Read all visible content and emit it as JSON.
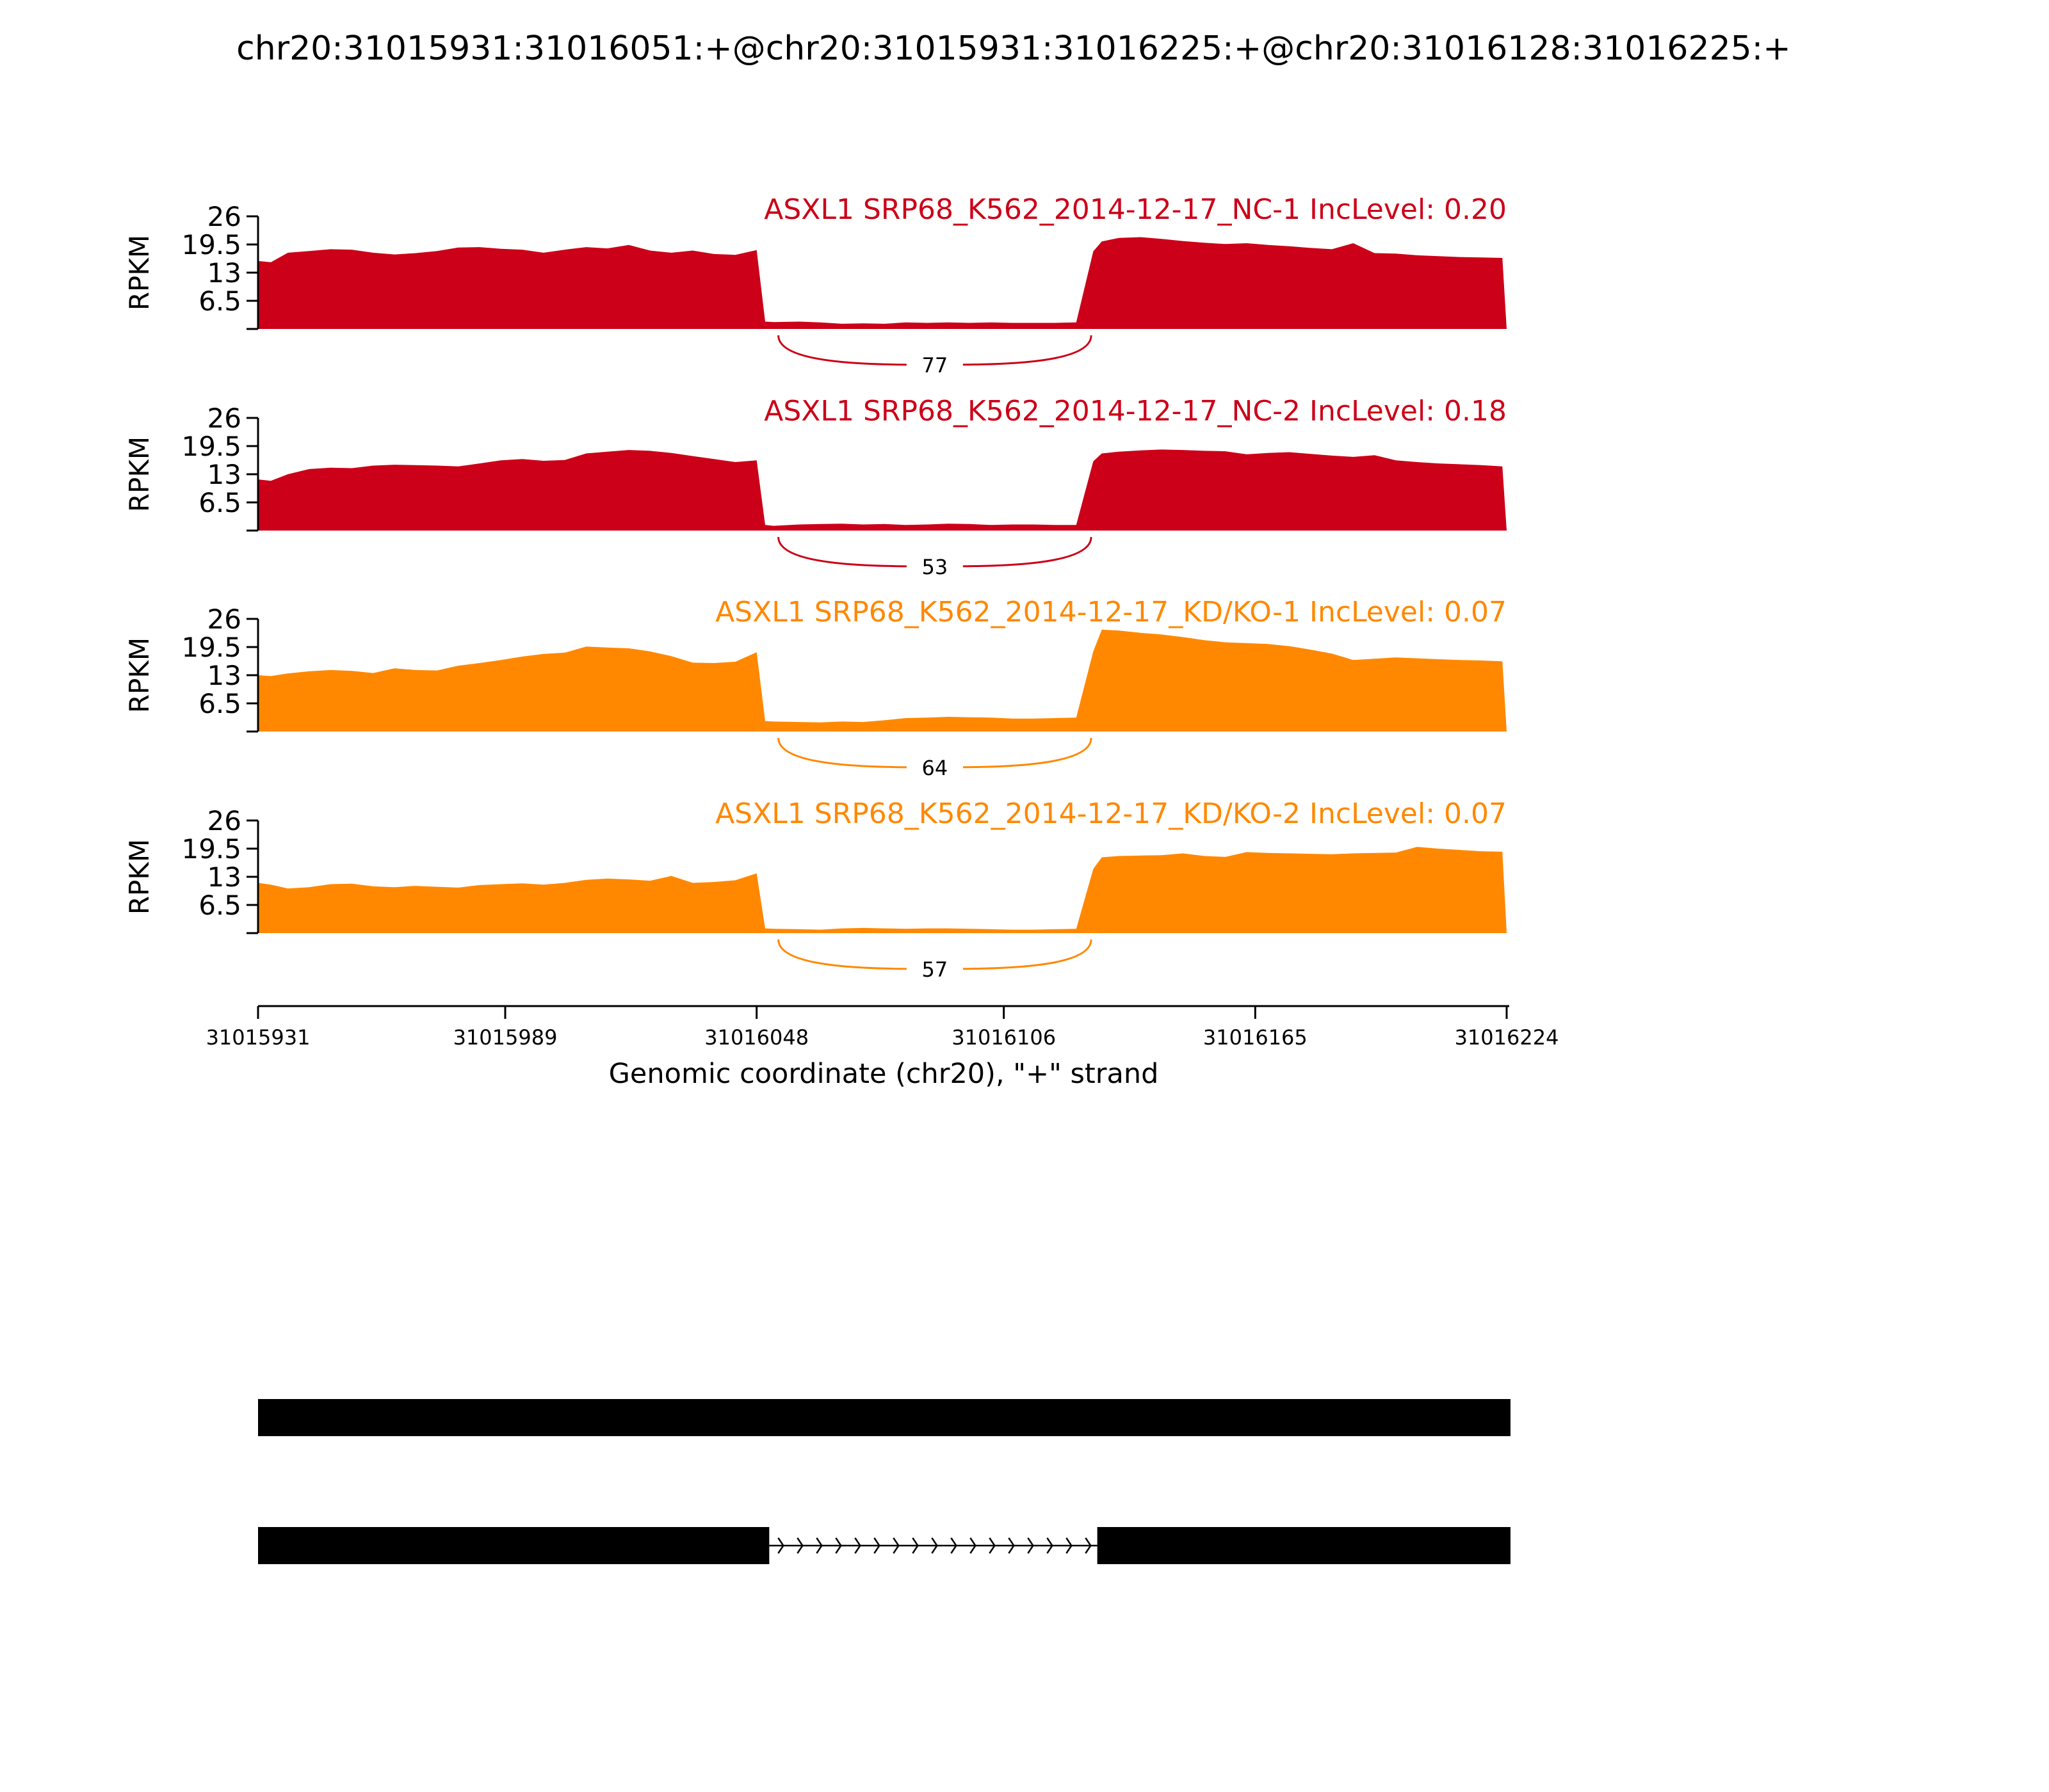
{
  "title": "chr20:31015931:31016051:+@chr20:31015931:31016225:+@chr20:31016128:31016225:+",
  "chart_data": {
    "type": "area",
    "xlabel": "Genomic coordinate (chr20), \"+\" strand",
    "xlim": [
      31015931,
      31016224
    ],
    "x_ticks": [
      31015931,
      31015989,
      31016048,
      31016106,
      31016165,
      31016224
    ],
    "x_tick_labels": [
      "31015931",
      "31015989",
      "31016048",
      "31016106",
      "31016165",
      "31016224"
    ],
    "ylabel": "RPKM",
    "ylim": [
      0,
      26
    ],
    "y_ticks": [
      6.5,
      13,
      19.5,
      26
    ],
    "y_tick_labels": [
      "6.5",
      "13",
      "19.5",
      "26"
    ],
    "exons": [
      {
        "start": 31015931,
        "end": 31016051
      },
      {
        "start": 31016128,
        "end": 31016225
      }
    ],
    "junction": {
      "start": 31016051,
      "end": 31016128
    },
    "series": [
      {
        "name": "ASXL1 SRP68_K562_2014-12-17_NC-1 IncLevel: 0.20",
        "color": "#CC0018",
        "junction_reads": "77",
        "x": [
          31015931,
          31015934,
          31015938,
          31015943,
          31015948,
          31015953,
          31015958,
          31015963,
          31015968,
          31015973,
          31015978,
          31015983,
          31015988,
          31015993,
          31015998,
          31016003,
          31016008,
          31016013,
          31016018,
          31016023,
          31016028,
          31016033,
          31016038,
          31016043,
          31016048,
          31016050,
          31016052,
          31016058,
          31016063,
          31016068,
          31016073,
          31016078,
          31016083,
          31016088,
          31016093,
          31016098,
          31016103,
          31016108,
          31016113,
          31016118,
          31016123,
          31016127,
          31016129,
          31016133,
          31016138,
          31016143,
          31016148,
          31016153,
          31016158,
          31016163,
          31016168,
          31016173,
          31016178,
          31016183,
          31016188,
          31016193,
          31016198,
          31016203,
          31016208,
          31016213,
          31016218,
          31016223,
          31016224
        ],
        "y": [
          15.7,
          15.4,
          17.6,
          18.0,
          18.4,
          18.3,
          17.6,
          17.2,
          17.5,
          18.0,
          18.8,
          18.9,
          18.5,
          18.3,
          17.6,
          18.3,
          18.9,
          18.6,
          19.4,
          18.1,
          17.6,
          18.1,
          17.3,
          17.1,
          18.2,
          1.7,
          1.6,
          1.7,
          1.5,
          1.2,
          1.3,
          1.2,
          1.5,
          1.4,
          1.5,
          1.4,
          1.5,
          1.4,
          1.4,
          1.4,
          1.5,
          17.9,
          20.2,
          21.0,
          21.2,
          20.8,
          20.3,
          19.9,
          19.6,
          19.8,
          19.4,
          19.1,
          18.7,
          18.4,
          19.8,
          17.5,
          17.4,
          17.0,
          16.8,
          16.6,
          16.5,
          16.4,
          0
        ]
      },
      {
        "name": "ASXL1 SRP68_K562_2014-12-17_NC-2 IncLevel: 0.18",
        "color": "#CC0018",
        "junction_reads": "53",
        "x": [
          31015931,
          31015934,
          31015938,
          31015943,
          31015948,
          31015953,
          31015958,
          31015963,
          31015968,
          31015973,
          31015978,
          31015983,
          31015988,
          31015993,
          31015998,
          31016003,
          31016008,
          31016013,
          31016018,
          31016023,
          31016028,
          31016033,
          31016038,
          31016043,
          31016048,
          31016050,
          31016052,
          31016058,
          31016063,
          31016068,
          31016073,
          31016078,
          31016083,
          31016088,
          31016093,
          31016098,
          31016103,
          31016108,
          31016113,
          31016118,
          31016123,
          31016127,
          31016129,
          31016133,
          31016138,
          31016143,
          31016148,
          31016153,
          31016158,
          31016163,
          31016168,
          31016173,
          31016178,
          31016183,
          31016188,
          31016193,
          31016198,
          31016203,
          31016208,
          31016213,
          31016218,
          31016223,
          31016224
        ],
        "y": [
          11.8,
          11.5,
          13.0,
          14.2,
          14.5,
          14.4,
          15.0,
          15.2,
          15.1,
          15.0,
          14.8,
          15.5,
          16.2,
          16.5,
          16.1,
          16.3,
          17.8,
          18.2,
          18.6,
          18.4,
          17.9,
          17.2,
          16.5,
          15.8,
          16.2,
          1.3,
          1.1,
          1.4,
          1.5,
          1.6,
          1.4,
          1.5,
          1.3,
          1.4,
          1.6,
          1.5,
          1.3,
          1.4,
          1.4,
          1.3,
          1.3,
          16.0,
          17.8,
          18.2,
          18.5,
          18.7,
          18.6,
          18.4,
          18.3,
          17.6,
          17.9,
          18.1,
          17.7,
          17.3,
          17.0,
          17.4,
          16.2,
          15.8,
          15.5,
          15.3,
          15.1,
          14.8,
          0
        ]
      },
      {
        "name": "ASXL1 SRP68_K562_2014-12-17_KD/KO-1 IncLevel: 0.07",
        "color": "#FF8800",
        "junction_reads": "64",
        "x": [
          31015931,
          31015934,
          31015938,
          31015943,
          31015948,
          31015953,
          31015958,
          31015963,
          31015968,
          31015973,
          31015978,
          31015983,
          31015988,
          31015993,
          31015998,
          31016003,
          31016008,
          31016013,
          31016018,
          31016023,
          31016028,
          31016033,
          31016038,
          31016043,
          31016048,
          31016050,
          31016052,
          31016058,
          31016063,
          31016068,
          31016073,
          31016078,
          31016083,
          31016088,
          31016093,
          31016098,
          31016103,
          31016108,
          31016113,
          31016118,
          31016123,
          31016127,
          31016129,
          31016133,
          31016138,
          31016143,
          31016148,
          31016153,
          31016158,
          31016163,
          31016168,
          31016173,
          31016178,
          31016183,
          31016188,
          31016193,
          31016198,
          31016203,
          31016208,
          31016213,
          31016218,
          31016223,
          31016224
        ],
        "y": [
          13.0,
          12.8,
          13.4,
          13.9,
          14.2,
          14.0,
          13.5,
          14.6,
          14.2,
          14.1,
          15.2,
          15.8,
          16.5,
          17.3,
          17.9,
          18.2,
          19.6,
          19.4,
          19.2,
          18.5,
          17.4,
          15.9,
          15.8,
          16.1,
          18.3,
          2.4,
          2.3,
          2.2,
          2.1,
          2.3,
          2.2,
          2.6,
          3.1,
          3.2,
          3.4,
          3.3,
          3.2,
          3.0,
          3.0,
          3.1,
          3.2,
          18.5,
          23.5,
          23.3,
          22.8,
          22.4,
          21.8,
          21.1,
          20.6,
          20.4,
          20.2,
          19.7,
          18.9,
          18.0,
          16.5,
          16.8,
          17.1,
          16.9,
          16.7,
          16.5,
          16.4,
          16.2,
          0
        ]
      },
      {
        "name": "ASXL1 SRP68_K562_2014-12-17_KD/KO-2 IncLevel: 0.07",
        "color": "#FF8800",
        "junction_reads": "57",
        "x": [
          31015931,
          31015934,
          31015938,
          31015943,
          31015948,
          31015953,
          31015958,
          31015963,
          31015968,
          31015973,
          31015978,
          31015983,
          31015988,
          31015993,
          31015998,
          31016003,
          31016008,
          31016013,
          31016018,
          31016023,
          31016028,
          31016033,
          31016038,
          31016043,
          31016048,
          31016050,
          31016052,
          31016058,
          31016063,
          31016068,
          31016073,
          31016078,
          31016083,
          31016088,
          31016093,
          31016098,
          31016103,
          31016108,
          31016113,
          31016118,
          31016123,
          31016127,
          31016129,
          31016133,
          31016138,
          31016143,
          31016148,
          31016153,
          31016158,
          31016163,
          31016168,
          31016173,
          31016178,
          31016183,
          31016188,
          31016193,
          31016198,
          31016203,
          31016208,
          31016213,
          31016218,
          31016223,
          31016224
        ],
        "y": [
          11.6,
          11.2,
          10.3,
          10.6,
          11.3,
          11.4,
          10.8,
          10.6,
          10.9,
          10.7,
          10.5,
          11.1,
          11.3,
          11.5,
          11.2,
          11.6,
          12.3,
          12.6,
          12.4,
          12.1,
          13.2,
          11.6,
          11.8,
          12.2,
          13.8,
          1.1,
          1.0,
          0.9,
          0.8,
          1.1,
          1.2,
          1.1,
          1.0,
          1.1,
          1.1,
          1.0,
          0.9,
          0.8,
          0.8,
          0.9,
          1.0,
          14.8,
          17.5,
          17.8,
          17.9,
          18.0,
          18.4,
          17.8,
          17.6,
          18.7,
          18.5,
          18.4,
          18.3,
          18.2,
          18.4,
          18.5,
          18.6,
          19.9,
          19.5,
          19.2,
          18.9,
          18.8,
          0
        ]
      }
    ],
    "isoforms": [
      {
        "exons": [
          [
            31015931,
            31016225
          ]
        ]
      },
      {
        "exons": [
          [
            31015931,
            31016051
          ],
          [
            31016128,
            31016225
          ]
        ],
        "strand": "+"
      }
    ]
  }
}
